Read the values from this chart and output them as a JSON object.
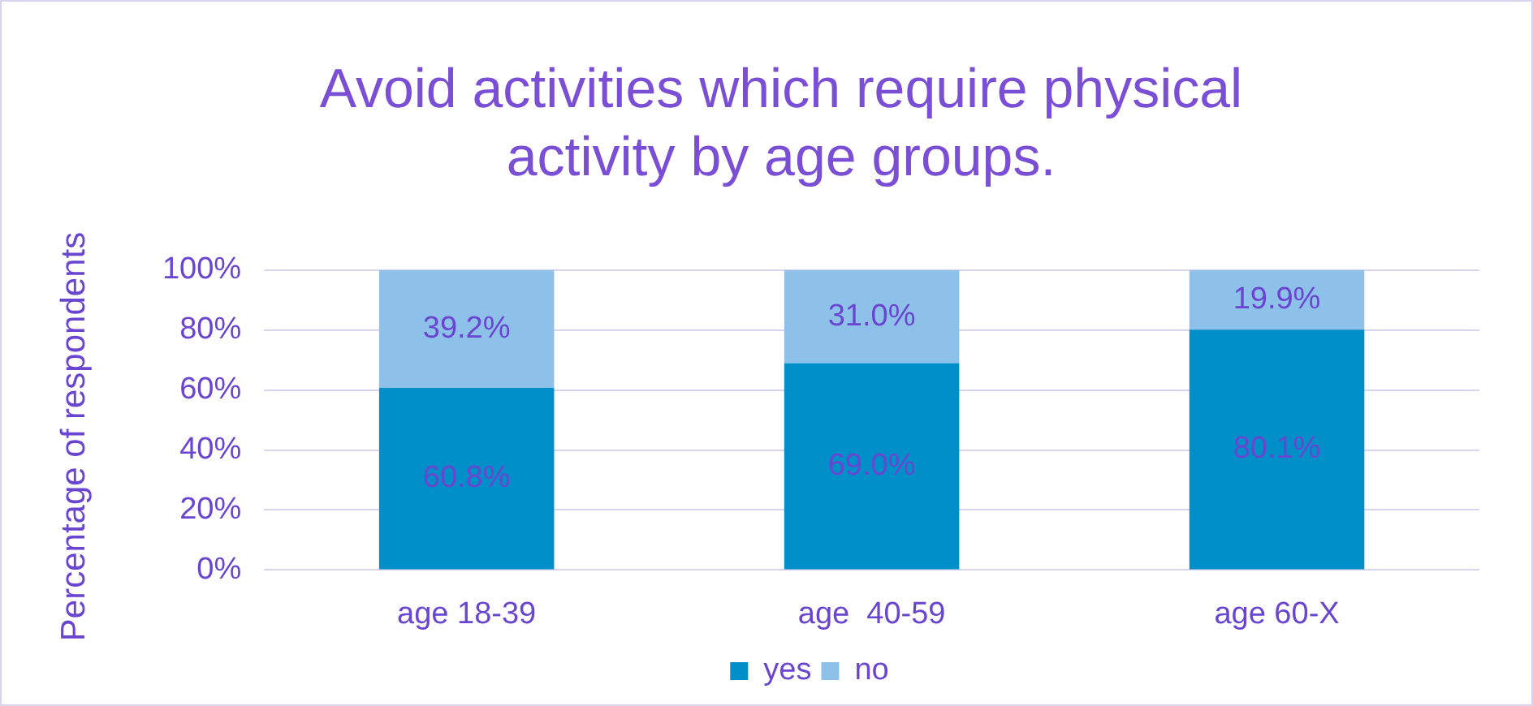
{
  "chart_data": {
    "type": "bar",
    "title": "Avoid activities which require physical activity by age groups.",
    "ylabel": "Percentage of respondents",
    "categories": [
      "age 18-39",
      "age  40-59",
      "age 60-X"
    ],
    "stacked": true,
    "series": [
      {
        "name": "yes",
        "color": "#008fc9",
        "values": [
          60.8,
          69.0,
          80.1
        ],
        "value_labels": [
          "60.8%",
          "69.0%",
          "80.1%"
        ]
      },
      {
        "name": "no",
        "color": "#8dc1ea",
        "values": [
          39.2,
          31.0,
          19.9
        ],
        "value_labels": [
          "39.2%",
          "31.0%",
          "19.9%"
        ]
      }
    ],
    "ylim": [
      0,
      100
    ],
    "yticks": [
      {
        "value": 0,
        "label": "0%"
      },
      {
        "value": 20,
        "label": "20%"
      },
      {
        "value": 40,
        "label": "40%"
      },
      {
        "value": 60,
        "label": "60%"
      },
      {
        "value": 80,
        "label": "80%"
      },
      {
        "value": 100,
        "label": "100%"
      }
    ],
    "grid": "y",
    "legend": "bottom"
  }
}
